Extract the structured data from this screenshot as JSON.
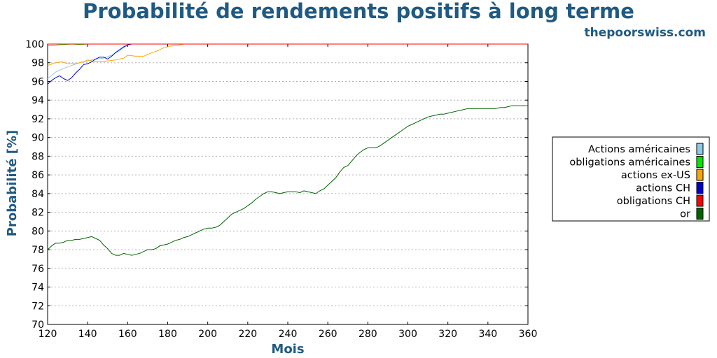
{
  "chart_data": {
    "type": "line",
    "title": "Probabilité de rendements positifs à long terme",
    "source": "thepoorswiss.com",
    "xlabel": "Mois",
    "ylabel": "Probabilité [%]",
    "xlim": [
      120,
      360
    ],
    "ylim": [
      70,
      100
    ],
    "xticks": [
      120,
      140,
      160,
      180,
      200,
      220,
      240,
      260,
      280,
      300,
      320,
      340,
      360
    ],
    "yticks": [
      70,
      72,
      74,
      76,
      78,
      80,
      82,
      84,
      86,
      88,
      90,
      92,
      94,
      96,
      98,
      100
    ],
    "grid": "horizontal",
    "legend_position": "right",
    "series": [
      {
        "name": "Actions américaines",
        "color": "#8ecae6",
        "x": [
          120,
          124,
          128,
          132,
          136,
          140,
          142,
          144,
          148,
          152,
          156,
          158,
          160,
          161,
          362
        ],
        "y": [
          96.3,
          97.0,
          97.4,
          97.7,
          98.0,
          98.2,
          98.3,
          98.4,
          98.5,
          98.8,
          99.3,
          99.6,
          99.9,
          100,
          100
        ]
      },
      {
        "name": "obligations américaines",
        "color": "#00e600",
        "x": [
          120,
          125,
          128,
          132,
          136,
          140,
          143,
          144,
          362
        ],
        "y": [
          99.8,
          99.9,
          99.95,
          100,
          99.95,
          100,
          100,
          100,
          100
        ]
      },
      {
        "name": "actions ex-US",
        "color": "#ffa500",
        "x": [
          120,
          124,
          127,
          130,
          134,
          138,
          140,
          142,
          146,
          150,
          154,
          158,
          160,
          164,
          168,
          170,
          174,
          178,
          182,
          186,
          188,
          362
        ],
        "y": [
          97.7,
          98.0,
          98.1,
          97.9,
          97.9,
          98.1,
          98.3,
          98.2,
          98.1,
          98.2,
          98.3,
          98.5,
          98.8,
          98.7,
          98.7,
          98.9,
          99.2,
          99.6,
          99.8,
          99.9,
          100,
          100
        ]
      },
      {
        "name": "actions CH",
        "color": "#0000cc",
        "x": [
          120,
          122,
          124,
          126,
          128,
          130,
          132,
          134,
          136,
          138,
          140,
          142,
          144,
          146,
          148,
          150,
          152,
          154,
          156,
          158,
          160,
          162,
          164,
          362
        ],
        "y": [
          95.7,
          96.1,
          96.4,
          96.6,
          96.3,
          96.1,
          96.4,
          96.9,
          97.3,
          97.8,
          97.9,
          98.1,
          98.4,
          98.6,
          98.6,
          98.4,
          98.7,
          99.1,
          99.4,
          99.7,
          99.9,
          100,
          100,
          100
        ]
      },
      {
        "name": "obligations CH",
        "color": "#ff0000",
        "x": [
          120,
          362
        ],
        "y": [
          100,
          100
        ]
      },
      {
        "name": "or",
        "color": "#006400",
        "x": [
          120,
          122,
          124,
          126,
          128,
          130,
          132,
          134,
          136,
          138,
          140,
          142,
          144,
          146,
          148,
          150,
          152,
          154,
          156,
          158,
          160,
          162,
          164,
          166,
          168,
          170,
          172,
          174,
          176,
          178,
          180,
          182,
          184,
          186,
          188,
          190,
          192,
          194,
          196,
          198,
          200,
          202,
          204,
          206,
          208,
          210,
          212,
          214,
          216,
          218,
          220,
          222,
          224,
          226,
          228,
          230,
          232,
          234,
          236,
          238,
          240,
          242,
          244,
          246,
          248,
          250,
          252,
          254,
          256,
          258,
          260,
          262,
          264,
          266,
          268,
          270,
          272,
          274,
          276,
          278,
          280,
          282,
          284,
          286,
          288,
          290,
          292,
          294,
          296,
          298,
          300,
          302,
          304,
          306,
          308,
          310,
          312,
          314,
          316,
          318,
          320,
          322,
          324,
          326,
          328,
          330,
          332,
          334,
          336,
          338,
          340,
          342,
          344,
          346,
          348,
          350,
          352,
          354,
          356,
          358,
          360
        ],
        "y": [
          78.0,
          78.4,
          78.7,
          78.7,
          78.8,
          79.0,
          79.0,
          79.1,
          79.1,
          79.2,
          79.3,
          79.4,
          79.2,
          79.0,
          78.5,
          78.1,
          77.6,
          77.4,
          77.4,
          77.6,
          77.5,
          77.4,
          77.5,
          77.6,
          77.8,
          78.0,
          78.0,
          78.1,
          78.4,
          78.5,
          78.6,
          78.8,
          79.0,
          79.1,
          79.3,
          79.4,
          79.6,
          79.8,
          80.0,
          80.2,
          80.3,
          80.3,
          80.4,
          80.6,
          81.0,
          81.4,
          81.8,
          82.0,
          82.2,
          82.4,
          82.7,
          83.0,
          83.4,
          83.7,
          84.0,
          84.2,
          84.2,
          84.1,
          84.0,
          84.1,
          84.2,
          84.2,
          84.2,
          84.1,
          84.3,
          84.2,
          84.1,
          84.0,
          84.3,
          84.5,
          84.9,
          85.3,
          85.7,
          86.3,
          86.8,
          87.0,
          87.5,
          88.0,
          88.4,
          88.7,
          88.9,
          88.9,
          88.9,
          89.1,
          89.4,
          89.7,
          90.0,
          90.3,
          90.6,
          90.9,
          91.2,
          91.4,
          91.6,
          91.8,
          92.0,
          92.2,
          92.3,
          92.4,
          92.5,
          92.5,
          92.6,
          92.7,
          92.8,
          92.9,
          93.0,
          93.1,
          93.1,
          93.1,
          93.1,
          93.1,
          93.1,
          93.1,
          93.1,
          93.2,
          93.2,
          93.3,
          93.4,
          93.4,
          93.4,
          93.4,
          93.4
        ]
      }
    ]
  }
}
